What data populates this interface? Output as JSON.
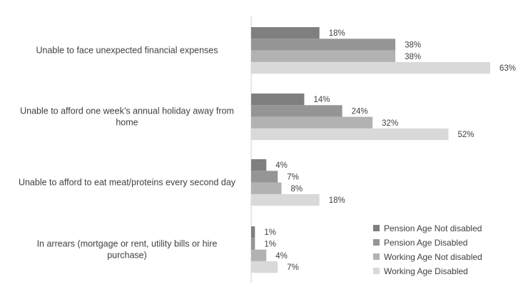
{
  "chart_data": {
    "type": "bar",
    "orientation": "horizontal",
    "categories": [
      [
        "Unable to face unexpected financial expenses"
      ],
      [
        "Unable to afford one week’s annual holiday away from",
        "home"
      ],
      [
        "Unable to afford to eat meat/proteins every second day"
      ],
      [
        "In arrears (mortgage or rent, utility bills or hire",
        "purchase)"
      ]
    ],
    "series": [
      {
        "name": "Pension Age Not disabled",
        "color": "#7f7f7f",
        "values": [
          18,
          14,
          4,
          1
        ]
      },
      {
        "name": "Pension Age Disabled",
        "color": "#959595",
        "values": [
          38,
          24,
          7,
          1
        ]
      },
      {
        "name": "Working Age Not disabled",
        "color": "#b2b2b2",
        "values": [
          38,
          32,
          8,
          4
        ]
      },
      {
        "name": "Working Age Disabled",
        "color": "#d9d9d9",
        "values": [
          63,
          52,
          18,
          7
        ]
      }
    ],
    "value_suffix": "%",
    "xlim": [
      0,
      63
    ],
    "legend": "bottom-right",
    "grid": false
  }
}
